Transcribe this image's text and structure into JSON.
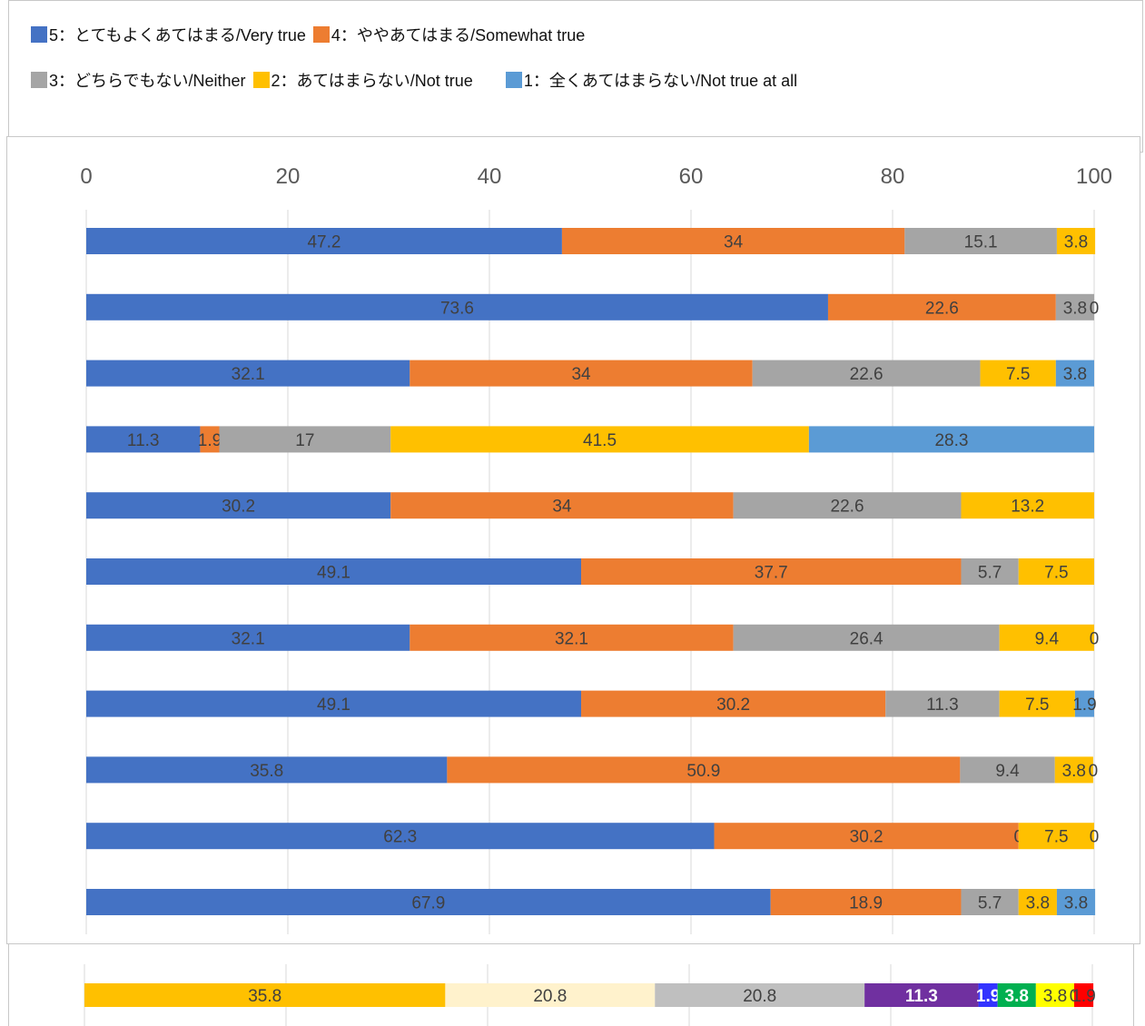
{
  "legend": [
    {
      "label": "5：とてもよくあてはまる/Very true",
      "color": "#4472C4"
    },
    {
      "label": "4：ややあてはまる/Somewhat true",
      "color": "#ED7D31"
    },
    {
      "label": "3：どちらでもない/Neither",
      "color": "#A5A5A5"
    },
    {
      "label": "2：あてはまらない/Not true",
      "color": "#FFC000"
    },
    {
      "label": "1：全くあてはまらない/Not true at all",
      "color": "#5B9BD5"
    }
  ],
  "chart_data": [
    {
      "type": "bar",
      "orientation": "horizontal",
      "stacked": true,
      "xlim": [
        0,
        100
      ],
      "x_ticks": [
        "0",
        "20",
        "40",
        "60",
        "80",
        "100"
      ],
      "grid": true,
      "legend_position": "top",
      "series": [
        {
          "name": "5：とてもよくあてはまる/Very true",
          "color": "#4472C4",
          "values": [
            47.2,
            73.6,
            32.1,
            11.3,
            30.2,
            49.1,
            32.1,
            49.1,
            35.8,
            62.3,
            67.9
          ]
        },
        {
          "name": "4：ややあてはまる/Somewhat true",
          "color": "#ED7D31",
          "values": [
            34,
            22.6,
            34,
            1.9,
            34,
            37.7,
            32.1,
            30.2,
            50.9,
            30.2,
            18.9
          ]
        },
        {
          "name": "3：どちらでもない/Neither",
          "color": "#A5A5A5",
          "values": [
            15.1,
            3.8,
            22.6,
            17,
            22.6,
            5.7,
            26.4,
            11.3,
            9.4,
            0,
            5.7
          ]
        },
        {
          "name": "2：あてはまらない/Not true",
          "color": "#FFC000",
          "values": [
            3.8,
            0,
            7.5,
            41.5,
            13.2,
            7.5,
            9.4,
            7.5,
            3.8,
            7.5,
            3.8
          ]
        },
        {
          "name": "1：全くあてはまらない/Not true at all",
          "color": "#5B9BD5",
          "values": [
            null,
            null,
            3.8,
            28.3,
            null,
            null,
            0,
            1.9,
            0,
            0,
            3.8
          ]
        }
      ]
    },
    {
      "type": "bar",
      "orientation": "horizontal",
      "stacked": true,
      "xlim": [
        0,
        100
      ],
      "grid": true,
      "segments": [
        {
          "value": 35.8,
          "label": "35.8",
          "color": "#FFC000",
          "text_color": "#404040",
          "bold": false
        },
        {
          "value": 20.8,
          "label": "20.8",
          "color": "#FFF2CC",
          "text_color": "#404040",
          "bold": false
        },
        {
          "value": 20.8,
          "label": "20.8",
          "color": "#BFBFBF",
          "text_color": "#404040",
          "bold": false
        },
        {
          "value": 11.3,
          "label": "11.3",
          "color": "#7030A0",
          "text_color": "#ffffff",
          "bold": true
        },
        {
          "value": 1.9,
          "label": "1.9",
          "color": "#3333FF",
          "text_color": "#ffffff",
          "bold": true
        },
        {
          "value": 3.8,
          "label": "3.8",
          "color": "#00B050",
          "text_color": "#ffffff",
          "bold": true
        },
        {
          "value": 3.8,
          "label": "3.8",
          "color": "#FFFF00",
          "text_color": "#404040",
          "bold": false
        },
        {
          "value": 0,
          "label": "0",
          "color": "#FFFF00",
          "text_color": "#404040",
          "bold": false
        },
        {
          "value": 1.9,
          "label": "1.9",
          "color": "#FF0000",
          "text_color": "#404040",
          "bold": false
        }
      ]
    }
  ]
}
